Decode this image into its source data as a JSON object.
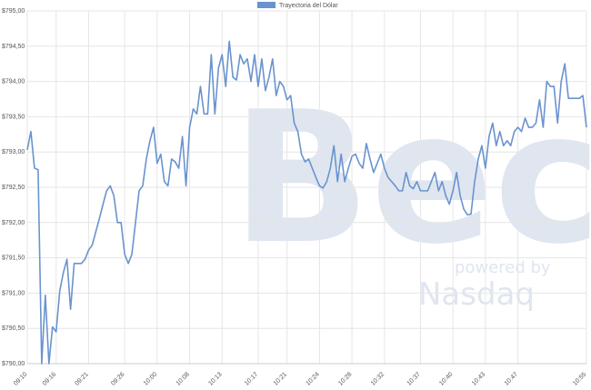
{
  "chart_data": {
    "type": "line",
    "legend": "top",
    "watermark": {
      "logo": "Bec",
      "tagline": "powered by",
      "brand": "Nasdaq"
    },
    "grid": true,
    "categories": [
      "09:10",
      null,
      null,
      null,
      null,
      null,
      null,
      null,
      "09:16",
      null,
      null,
      null,
      null,
      null,
      null,
      null,
      null,
      "09:21",
      null,
      null,
      null,
      null,
      null,
      null,
      null,
      null,
      null,
      "09:26",
      null,
      null,
      null,
      null,
      null,
      null,
      null,
      null,
      "10:00",
      null,
      null,
      null,
      null,
      null,
      null,
      null,
      null,
      "10:08",
      null,
      null,
      null,
      null,
      null,
      null,
      null,
      null,
      "10:13",
      null,
      null,
      null,
      null,
      null,
      null,
      null,
      null,
      null,
      "10:17",
      null,
      null,
      null,
      null,
      null,
      null,
      null,
      "10:21",
      null,
      null,
      null,
      null,
      null,
      null,
      null,
      null,
      "10:24",
      null,
      null,
      null,
      null,
      null,
      null,
      null,
      null,
      "10:28",
      null,
      null,
      null,
      null,
      null,
      null,
      null,
      null,
      "10:32",
      null,
      null,
      null,
      null,
      null,
      null,
      null,
      null,
      null,
      "10:37",
      null,
      null,
      null,
      null,
      null,
      null,
      null,
      null,
      "10:40",
      null,
      null,
      null,
      null,
      null,
      null,
      null,
      null,
      "10:43",
      null,
      null,
      null,
      null,
      null,
      null,
      null,
      null,
      "10:47",
      null,
      null,
      null,
      null,
      null,
      null,
      null,
      null,
      null,
      null,
      null,
      null,
      null,
      null,
      null,
      null,
      null,
      null,
      "10:55"
    ],
    "series": [
      {
        "name": "Trayectoria del Dólar",
        "color": "#6a93cf",
        "values": [
          793.03,
          793.29,
          792.77,
          792.75,
          790.0,
          790.97,
          790.0,
          790.52,
          790.45,
          791.03,
          791.29,
          791.48,
          790.77,
          791.42,
          791.42,
          791.42,
          791.48,
          791.61,
          791.68,
          791.87,
          792.06,
          792.26,
          792.45,
          792.52,
          792.38,
          792.0,
          792.0,
          791.55,
          791.42,
          791.55,
          792.0,
          792.45,
          792.52,
          792.9,
          793.16,
          793.35,
          792.84,
          792.97,
          792.58,
          792.52,
          792.9,
          792.86,
          792.77,
          793.22,
          792.52,
          793.35,
          793.61,
          793.54,
          793.93,
          793.54,
          793.54,
          794.38,
          793.54,
          794.19,
          794.38,
          793.93,
          794.57,
          794.06,
          794.02,
          794.38,
          794.25,
          794.32,
          794.0,
          794.38,
          793.93,
          794.32,
          793.87,
          794.06,
          794.32,
          793.8,
          794.0,
          793.93,
          793.74,
          793.8,
          793.41,
          793.29,
          792.97,
          792.86,
          792.9,
          792.77,
          792.64,
          792.52,
          792.49,
          792.58,
          792.77,
          793.09,
          792.58,
          792.97,
          792.58,
          792.77,
          792.94,
          792.97,
          792.84,
          792.77,
          793.12,
          792.9,
          792.71,
          792.84,
          792.97,
          792.77,
          792.64,
          792.58,
          792.52,
          792.45,
          792.45,
          792.71,
          792.52,
          792.48,
          792.58,
          792.45,
          792.45,
          792.45,
          792.58,
          792.71,
          792.45,
          792.58,
          792.38,
          792.26,
          792.45,
          792.71,
          792.38,
          792.19,
          792.11,
          792.12,
          792.58,
          792.9,
          793.09,
          792.77,
          793.22,
          793.41,
          793.09,
          793.29,
          793.09,
          793.16,
          793.09,
          793.29,
          793.35,
          793.29,
          793.48,
          793.35,
          793.35,
          793.41,
          793.74,
          793.35,
          794.0,
          793.93,
          793.93,
          793.41,
          794.0,
          794.25,
          793.76,
          793.76,
          793.76,
          793.76,
          793.8,
          793.35
        ]
      }
    ],
    "ylim": [
      790,
      795
    ],
    "yticks": [
      {
        "value": 790,
        "label": "$790,00"
      },
      {
        "value": 790.5,
        "label": "$790,50"
      },
      {
        "value": 791,
        "label": "$791,00"
      },
      {
        "value": 791.5,
        "label": "$791,50"
      },
      {
        "value": 792,
        "label": "$792,00"
      },
      {
        "value": 792.5,
        "label": "$792,50"
      },
      {
        "value": 793,
        "label": "$793,00"
      },
      {
        "value": 793.5,
        "label": "$793,50"
      },
      {
        "value": 794,
        "label": "$794,00"
      },
      {
        "value": 794.5,
        "label": "$794,50"
      },
      {
        "value": 795,
        "label": "$795,00"
      }
    ]
  }
}
